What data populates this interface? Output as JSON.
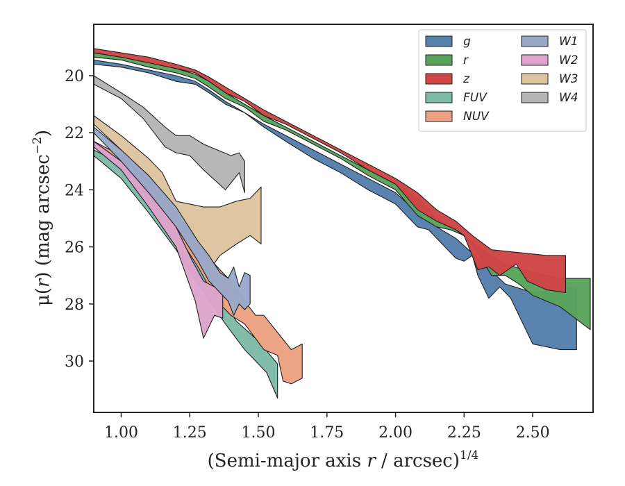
{
  "chart_data": {
    "type": "area",
    "xlabel_prefix": "(Semi-major axis ",
    "xlabel_var": "r",
    "xlabel_mid": " / arcsec)",
    "xlabel_sup": "1/4",
    "ylabel_prefix": "μ(",
    "ylabel_var": "r",
    "ylabel_mid": ") (mag arcsec",
    "ylabel_sup": "−2",
    "ylabel_suffix": ")",
    "xlim": [
      0.9,
      2.72
    ],
    "ylim": [
      31.8,
      18.2
    ],
    "y_inverted": true,
    "xticks": [
      1.0,
      1.25,
      1.5,
      1.75,
      2.0,
      2.25,
      2.5
    ],
    "xtick_labels": [
      "1.00",
      "1.25",
      "1.50",
      "1.75",
      "2.00",
      "2.25",
      "2.50"
    ],
    "yticks": [
      20,
      22,
      24,
      26,
      28,
      30
    ],
    "ytick_labels": [
      "20",
      "22",
      "24",
      "26",
      "28",
      "30"
    ],
    "grid": false,
    "legend_placement": "top-right",
    "legend_columns": 2,
    "series": [
      {
        "name": "W4",
        "color": "#b5b5b5",
        "x": [
          0.9,
          1.0,
          1.08,
          1.16,
          1.2,
          1.25,
          1.3,
          1.35,
          1.4,
          1.43,
          1.45,
          1.45,
          1.43,
          1.38,
          1.3,
          1.25,
          1.2,
          1.16,
          1.08,
          1.0,
          0.9
        ],
        "upper": [
          20.0,
          20.6,
          21.1,
          21.8,
          22.1,
          22.1,
          22.4,
          22.6,
          22.8,
          22.7,
          23.0,
          24.1,
          23.4,
          24.0,
          23.3,
          22.8,
          22.7,
          22.5,
          21.5,
          20.8,
          20.3
        ]
      },
      {
        "name": "W3",
        "color": "#dec4a0",
        "x": [
          0.9,
          1.0,
          1.1,
          1.15,
          1.2,
          1.3,
          1.36,
          1.42,
          1.47,
          1.51,
          1.51,
          1.47,
          1.42,
          1.36,
          1.33,
          1.28,
          1.22,
          1.16,
          1.1,
          1.0,
          0.9
        ],
        "upper": [
          21.4,
          22.1,
          22.9,
          23.4,
          24.4,
          24.6,
          24.6,
          24.4,
          24.3,
          23.9,
          25.9,
          25.6,
          25.9,
          26.3,
          26.7,
          26.0,
          25.6,
          25.4,
          24.0,
          22.6,
          21.7
        ]
      },
      {
        "name": "FUV",
        "color": "#7dbba7",
        "x": [
          0.9,
          1.0,
          1.1,
          1.2,
          1.28,
          1.35,
          1.42,
          1.5,
          1.57,
          1.57,
          1.53,
          1.45,
          1.38,
          1.28,
          1.2,
          1.1,
          1.0,
          0.9
        ],
        "upper": [
          22.6,
          23.1,
          24.0,
          25.2,
          26.4,
          27.6,
          28.6,
          29.3,
          30.1,
          31.3,
          30.4,
          29.6,
          28.7,
          27.3,
          26.1,
          24.8,
          23.6,
          22.8
        ]
      },
      {
        "name": "NUV",
        "color": "#eca282",
        "x": [
          0.9,
          1.0,
          1.1,
          1.2,
          1.28,
          1.35,
          1.4,
          1.45,
          1.49,
          1.52,
          1.57,
          1.62,
          1.66,
          1.66,
          1.62,
          1.59,
          1.57,
          1.52,
          1.45,
          1.4,
          1.35,
          1.28,
          1.2,
          1.1,
          1.0,
          0.9
        ],
        "upper": [
          22.3,
          22.8,
          23.7,
          24.8,
          25.9,
          26.7,
          27.2,
          27.9,
          28.4,
          28.4,
          29.0,
          29.6,
          29.4,
          30.6,
          30.8,
          30.7,
          29.8,
          29.6,
          28.7,
          28.4,
          27.9,
          26.7,
          25.5,
          24.2,
          23.1,
          22.5
        ]
      },
      {
        "name": "W2",
        "color": "#dea4cc",
        "x": [
          0.9,
          1.0,
          1.1,
          1.2,
          1.26,
          1.3,
          1.34,
          1.37,
          1.37,
          1.34,
          1.3,
          1.27,
          1.2,
          1.1,
          1.0,
          0.9
        ],
        "upper": [
          22.3,
          23.0,
          24.0,
          25.3,
          26.5,
          27.2,
          27.4,
          27.6,
          28.5,
          28.4,
          29.2,
          27.9,
          26.0,
          24.6,
          23.3,
          22.5
        ]
      },
      {
        "name": "W1",
        "color": "#9aa8c8",
        "x": [
          0.9,
          1.0,
          1.1,
          1.2,
          1.28,
          1.32,
          1.36,
          1.39,
          1.41,
          1.43,
          1.45,
          1.47,
          1.47,
          1.45,
          1.43,
          1.41,
          1.39,
          1.36,
          1.32,
          1.28,
          1.2,
          1.1,
          1.0,
          0.9
        ],
        "upper": [
          21.8,
          22.6,
          23.5,
          24.6,
          25.8,
          26.3,
          26.9,
          27.1,
          26.7,
          27.4,
          26.9,
          27.0,
          28.0,
          28.2,
          28.0,
          28.4,
          27.9,
          27.6,
          27.2,
          26.5,
          25.3,
          24.1,
          23.0,
          22.0
        ]
      },
      {
        "name": "g",
        "color": "#5580ac",
        "x": [
          0.9,
          1.0,
          1.1,
          1.2,
          1.27,
          1.32,
          1.38,
          1.45,
          1.52,
          1.6,
          1.7,
          1.8,
          1.9,
          2.0,
          2.08,
          2.15,
          2.22,
          2.3,
          2.4,
          2.5,
          2.6,
          2.66,
          2.66,
          2.6,
          2.5,
          2.45,
          2.42,
          2.38,
          2.34,
          2.3,
          2.28,
          2.25,
          2.22,
          2.18,
          2.12,
          2.08,
          2.0,
          1.9,
          1.8,
          1.7,
          1.6,
          1.52,
          1.45,
          1.38,
          1.32,
          1.27,
          1.2,
          1.1,
          1.0,
          0.9
        ],
        "upper": [
          19.45,
          19.6,
          19.8,
          20.0,
          20.2,
          20.5,
          20.9,
          21.3,
          21.7,
          22.1,
          22.6,
          23.1,
          23.6,
          24.1,
          24.8,
          25.3,
          25.7,
          26.4,
          27.3,
          27.6,
          27.5,
          27.4,
          29.6,
          29.6,
          29.4,
          28.4,
          27.8,
          27.4,
          27.8,
          27.0,
          26.3,
          26.5,
          26.4,
          26.0,
          25.4,
          25.3,
          24.5,
          24.0,
          23.4,
          22.9,
          22.3,
          21.8,
          21.3,
          21.0,
          20.6,
          20.3,
          20.2,
          19.9,
          19.7,
          19.6
        ]
      },
      {
        "name": "r",
        "color": "#5aa35c",
        "x": [
          0.9,
          1.0,
          1.1,
          1.2,
          1.27,
          1.32,
          1.38,
          1.45,
          1.52,
          1.6,
          1.7,
          1.8,
          1.9,
          2.0,
          2.08,
          2.15,
          2.22,
          2.3,
          2.4,
          2.5,
          2.6,
          2.71,
          2.71,
          2.6,
          2.5,
          2.45,
          2.4,
          2.35,
          2.3,
          2.25,
          2.2,
          2.15,
          2.08,
          2.0,
          1.9,
          1.8,
          1.7,
          1.6,
          1.52,
          1.45,
          1.38,
          1.32,
          1.27,
          1.2,
          1.1,
          1.0,
          0.9
        ],
        "upper": [
          19.2,
          19.35,
          19.5,
          19.75,
          19.95,
          20.2,
          20.6,
          21.0,
          21.4,
          21.8,
          22.3,
          22.8,
          23.3,
          23.8,
          24.3,
          25.0,
          25.4,
          26.0,
          26.6,
          26.9,
          27.1,
          27.1,
          28.9,
          28.1,
          27.7,
          27.3,
          27.0,
          27.0,
          26.2,
          25.6,
          25.4,
          25.3,
          24.9,
          24.0,
          23.5,
          22.9,
          22.4,
          21.9,
          21.6,
          21.1,
          20.8,
          20.4,
          20.1,
          19.9,
          19.7,
          19.45,
          19.35
        ]
      },
      {
        "name": "z",
        "color": "#d04545",
        "x": [
          0.9,
          1.0,
          1.1,
          1.2,
          1.27,
          1.32,
          1.38,
          1.45,
          1.52,
          1.6,
          1.7,
          1.8,
          1.9,
          2.0,
          2.08,
          2.15,
          2.22,
          2.28,
          2.35,
          2.45,
          2.55,
          2.62,
          2.62,
          2.55,
          2.48,
          2.44,
          2.38,
          2.34,
          2.3,
          2.25,
          2.22,
          2.15,
          2.08,
          2.0,
          1.9,
          1.8,
          1.7,
          1.6,
          1.52,
          1.45,
          1.38,
          1.32,
          1.27,
          1.2,
          1.1,
          1.0,
          0.9
        ],
        "upper": [
          19.05,
          19.2,
          19.35,
          19.6,
          19.8,
          20.05,
          20.4,
          20.8,
          21.2,
          21.6,
          22.1,
          22.6,
          23.1,
          23.6,
          24.1,
          24.7,
          25.1,
          25.6,
          26.1,
          26.2,
          26.3,
          26.3,
          27.6,
          27.5,
          27.2,
          26.6,
          27.0,
          26.7,
          26.8,
          25.6,
          25.4,
          25.1,
          24.7,
          23.8,
          23.3,
          22.7,
          22.2,
          21.7,
          21.4,
          20.9,
          20.6,
          20.2,
          19.9,
          19.75,
          19.55,
          19.35,
          19.2
        ]
      }
    ],
    "legend_order": [
      "g",
      "r",
      "z",
      "FUV",
      "NUV",
      "W1",
      "W2",
      "W3",
      "W4"
    ]
  }
}
